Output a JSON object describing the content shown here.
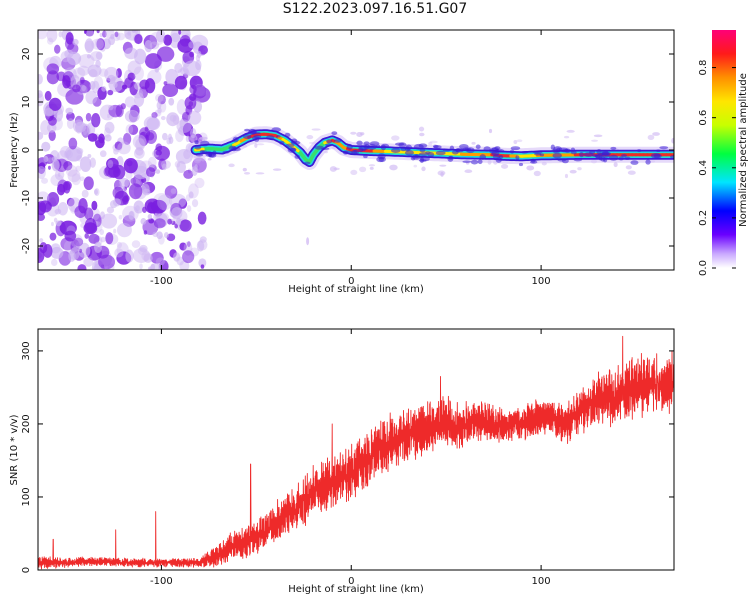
{
  "title": "S122.2023.097.16.51.G07",
  "colors": {
    "snr_line": "#ee2a2a",
    "axis": "#000000",
    "ridge_outer": "#3a1bd6",
    "ridge_mid": "#1fd7e0",
    "ridge_core": "#ee2a2a",
    "noise_light": "#cdb4f2",
    "noise_dark": "#7a1fe0"
  },
  "chart_data": [
    {
      "type": "heatmap",
      "title": "S122.2023.097.16.51.G07",
      "xlabel": "Height of straight line (km)",
      "ylabel": "Frequency (Hz)",
      "xlim": [
        -165,
        170
      ],
      "ylim": [
        -25,
        25
      ],
      "x_ticks": [
        -100,
        0,
        100
      ],
      "x_tick_labels": [
        "-100",
        "0",
        "100"
      ],
      "y_ticks": [
        -20,
        -10,
        0,
        10,
        20
      ],
      "y_tick_labels": [
        "-20",
        "-10",
        "0",
        "10",
        "20"
      ],
      "colorbar": {
        "label": "Normalized spectral amplitude",
        "range": [
          0.0,
          0.95
        ],
        "ticks": [
          0.0,
          0.2,
          0.4,
          0.6,
          0.8
        ],
        "tick_labels": [
          "0.0",
          "0.2",
          "0.4",
          "0.6",
          "0.8"
        ],
        "colormap": "rainbow: white-violet, blue, cyan, green, yellow, orange, red, magenta"
      },
      "noise_region_x": [
        -165,
        -82
      ],
      "ridge": {
        "description": "dominant frequency ridge",
        "x": [
          -82,
          -75,
          -68,
          -62,
          -55,
          -50,
          -45,
          -40,
          -35,
          -30,
          -27,
          -24,
          -22,
          -20,
          -17,
          -14,
          -10,
          -7,
          -4,
          0,
          10,
          20,
          40,
          60,
          75,
          80,
          90,
          100,
          120,
          140,
          170
        ],
        "y": [
          0.0,
          0.3,
          0.1,
          1.0,
          2.5,
          3.2,
          3.3,
          3.0,
          2.0,
          0.5,
          -0.5,
          -2.0,
          -2.5,
          -1.0,
          0.5,
          1.5,
          2.0,
          1.5,
          0.5,
          0.0,
          -0.2,
          -0.3,
          -0.6,
          -0.9,
          -1.0,
          -1.2,
          -1.3,
          -1.1,
          -1.0,
          -1.0,
          -1.0
        ],
        "amplitude": [
          0.75,
          0.65,
          0.6,
          0.7,
          0.85,
          0.9,
          0.9,
          0.85,
          0.75,
          0.7,
          0.55,
          0.35,
          0.3,
          0.45,
          0.6,
          0.75,
          0.85,
          0.8,
          0.8,
          0.9,
          0.85,
          0.75,
          0.7,
          0.8,
          0.85,
          0.9,
          0.75,
          0.8,
          0.85,
          0.9,
          0.95
        ]
      }
    },
    {
      "type": "line",
      "title": "",
      "xlabel": "Height of straight line (km)",
      "ylabel": "SNR (10 * v/v)",
      "xlim": [
        -165,
        170
      ],
      "ylim": [
        0,
        330
      ],
      "x_ticks": [
        -100,
        0,
        100
      ],
      "x_tick_labels": [
        "-100",
        "0",
        "100"
      ],
      "y_ticks": [
        0,
        100,
        200,
        300
      ],
      "y_tick_labels": [
        "0",
        "100",
        "200",
        "300"
      ],
      "series": [
        {
          "x": [
            -165,
            -150,
            -140,
            -130,
            -120,
            -110,
            -100,
            -90,
            -80,
            -75,
            -70,
            -65,
            -60,
            -55,
            -50,
            -45,
            -40,
            -35,
            -30,
            -25,
            -20,
            -15,
            -10,
            -5,
            0,
            5,
            10,
            15,
            20,
            25,
            30,
            35,
            40,
            45,
            50,
            55,
            60,
            65,
            70,
            75,
            80,
            85,
            90,
            95,
            100,
            105,
            110,
            115,
            120,
            125,
            130,
            135,
            140,
            145,
            150,
            155,
            160,
            165,
            170
          ],
          "y": [
            10,
            10,
            12,
            12,
            10,
            10,
            10,
            10,
            10,
            15,
            20,
            30,
            35,
            40,
            45,
            55,
            65,
            75,
            85,
            95,
            105,
            115,
            120,
            125,
            135,
            145,
            155,
            165,
            175,
            180,
            185,
            190,
            195,
            200,
            205,
            195,
            200,
            205,
            205,
            200,
            195,
            200,
            200,
            205,
            210,
            210,
            200,
            205,
            215,
            225,
            235,
            235,
            240,
            245,
            250,
            255,
            255,
            255,
            260
          ],
          "amplitude": [
            10,
            6,
            6,
            6,
            6,
            6,
            6,
            6,
            6,
            12,
            14,
            18,
            20,
            22,
            24,
            26,
            28,
            30,
            32,
            34,
            36,
            36,
            38,
            38,
            40,
            40,
            40,
            40,
            38,
            38,
            36,
            36,
            36,
            38,
            36,
            32,
            30,
            30,
            30,
            26,
            24,
            22,
            22,
            24,
            24,
            24,
            26,
            30,
            34,
            36,
            38,
            38,
            40,
            40,
            40,
            42,
            42,
            42,
            42
          ],
          "spikes": [
            {
              "x": -157,
              "y": 42
            },
            {
              "x": -124,
              "y": 55
            },
            {
              "x": -103,
              "y": 80
            },
            {
              "x": -53,
              "y": 145
            },
            {
              "x": -10,
              "y": 200
            },
            {
              "x": 47,
              "y": 265
            },
            {
              "x": 143,
              "y": 320
            }
          ]
        }
      ]
    }
  ]
}
